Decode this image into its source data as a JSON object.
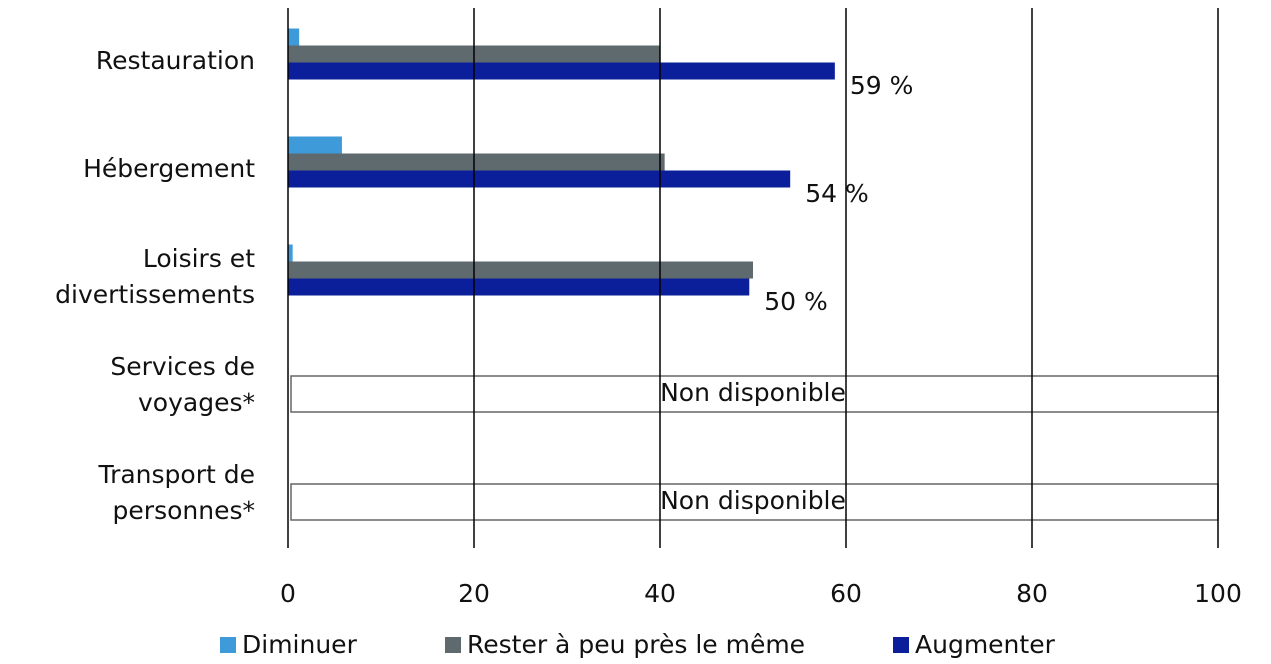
{
  "chart_data": {
    "type": "hbar",
    "categories": [
      [
        "Restauration"
      ],
      [
        "Hébergement"
      ],
      [
        "Loisirs et",
        "divertissements"
      ],
      [
        "Services de",
        "voyages*"
      ],
      [
        "Transport de",
        "personnes*"
      ]
    ],
    "series": [
      {
        "name": "Diminuer",
        "color": "#3e9ad8",
        "values": [
          1.2,
          5.8,
          0.5,
          null,
          null
        ]
      },
      {
        "name": "Rester à peu près le même",
        "color": "#5f6a6f",
        "values": [
          40,
          40.5,
          50,
          null,
          null
        ]
      },
      {
        "name": "Augmenter",
        "color": "#0b1f9a",
        "values": [
          58.8,
          54,
          49.6,
          null,
          null
        ],
        "value_labels": [
          "59 %",
          "54 %",
          "50 %",
          null,
          null
        ]
      }
    ],
    "annotations": [
      null,
      null,
      null,
      "Non disponible",
      "Non disponible"
    ],
    "xlim": [
      0,
      100
    ],
    "xticks": [
      0,
      20,
      40,
      60,
      80,
      100
    ],
    "grid": true,
    "legend": "bottom"
  }
}
